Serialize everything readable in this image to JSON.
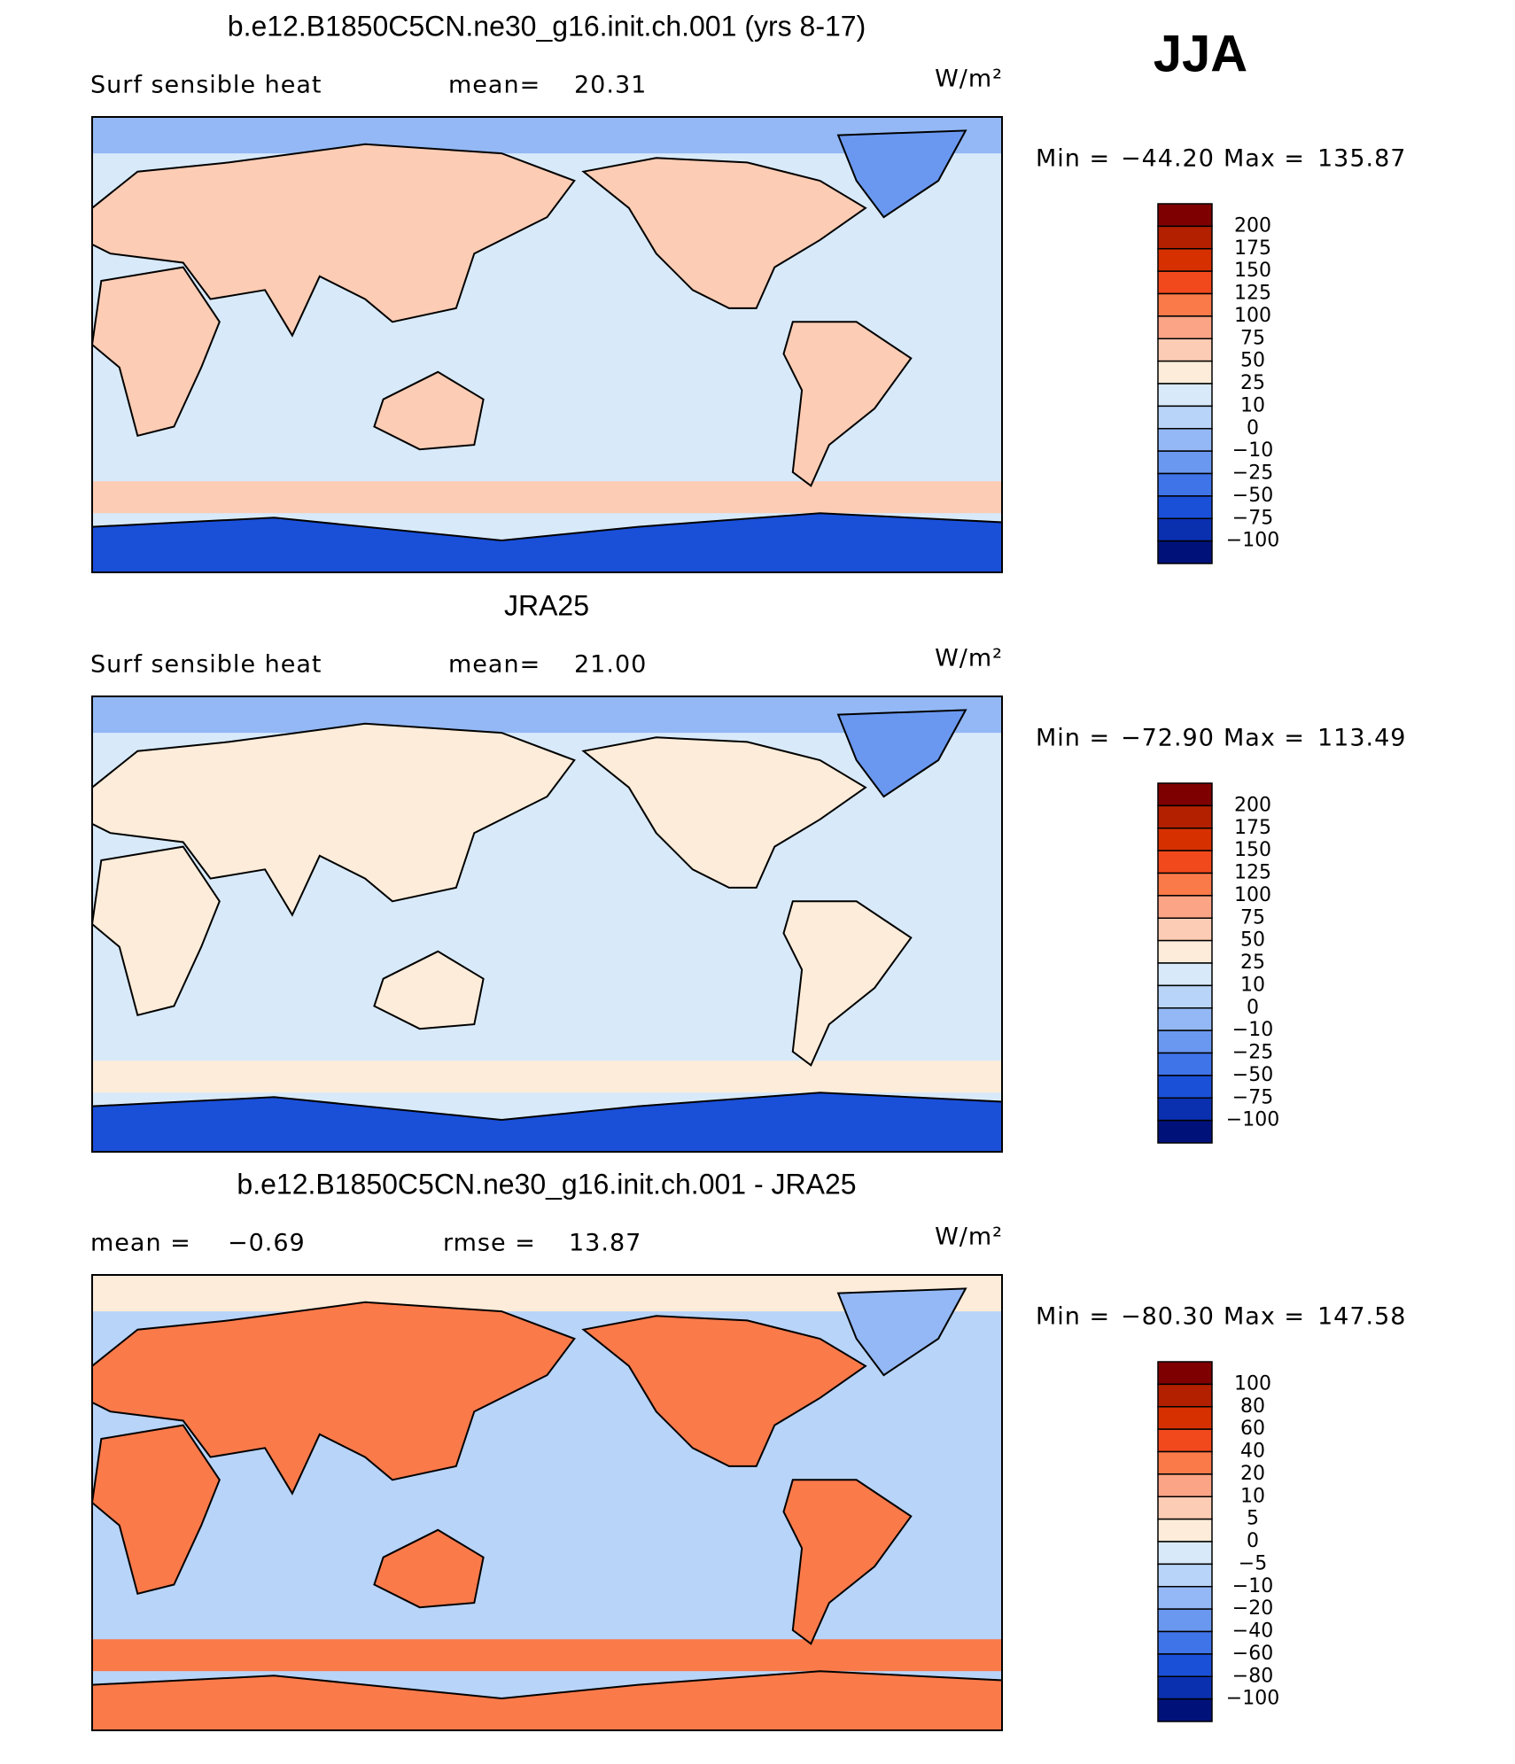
{
  "header": {
    "season": "JJA"
  },
  "panels": [
    {
      "title": "b.e12.B1850C5CN.ne30_g16.init.ch.001 (yrs 8-17)",
      "left_label": "Surf  sensible heat",
      "stats": [
        {
          "label": "mean=",
          "value": "20.31"
        }
      ],
      "units": "W/m²",
      "min_label": "Min  =",
      "min_value": "−44.20",
      "max_label": "Max  =",
      "max_value": "135.87",
      "colorbar": {
        "colors": [
          "#7f0000",
          "#b22000",
          "#d73000",
          "#f2491c",
          "#fa7a4a",
          "#fca486",
          "#fdccb4",
          "#fdecd9",
          "#d8eafa",
          "#b8d4f8",
          "#93b8f5",
          "#6a98f0",
          "#3f73e8",
          "#1a4fd8",
          "#0a30b0",
          "#00127a"
        ],
        "labels": [
          "200",
          "175",
          "150",
          "125",
          "100",
          "75",
          "50",
          "25",
          "10",
          "0",
          "−10",
          "−25",
          "−50",
          "−75",
          "−100"
        ]
      }
    },
    {
      "title": "JRA25",
      "left_label": "Surf  sensible heat",
      "stats": [
        {
          "label": "mean=",
          "value": "21.00"
        }
      ],
      "units": "W/m²",
      "min_label": "Min  =",
      "min_value": "−72.90",
      "max_label": "Max  =",
      "max_value": "113.49",
      "colorbar": {
        "colors": [
          "#7f0000",
          "#b22000",
          "#d73000",
          "#f2491c",
          "#fa7a4a",
          "#fca486",
          "#fdccb4",
          "#fdecd9",
          "#d8eafa",
          "#b8d4f8",
          "#93b8f5",
          "#6a98f0",
          "#3f73e8",
          "#1a4fd8",
          "#0a30b0",
          "#00127a"
        ],
        "labels": [
          "200",
          "175",
          "150",
          "125",
          "100",
          "75",
          "50",
          "25",
          "10",
          "0",
          "−10",
          "−25",
          "−50",
          "−75",
          "−100"
        ]
      }
    },
    {
      "title": "b.e12.B1850C5CN.ne30_g16.init.ch.001 - JRA25",
      "stats": [
        {
          "label": "mean =",
          "value": "−0.69"
        },
        {
          "label": "rmse =",
          "value": "13.87"
        }
      ],
      "units": "W/m²",
      "min_label": "Min  =",
      "min_value": "−80.30",
      "max_label": "Max  =",
      "max_value": "147.58",
      "colorbar": {
        "colors": [
          "#7f0000",
          "#b22000",
          "#d73000",
          "#f2491c",
          "#fa7a4a",
          "#fca486",
          "#fdccb4",
          "#fdecd9",
          "#d8eafa",
          "#b8d4f8",
          "#93b8f5",
          "#6a98f0",
          "#3f73e8",
          "#1a4fd8",
          "#0a30b0",
          "#00127a"
        ],
        "labels": [
          "100",
          "80",
          "60",
          "40",
          "20",
          "10",
          "5",
          "0",
          "−5",
          "−10",
          "−20",
          "−40",
          "−60",
          "−80",
          "−100"
        ]
      }
    }
  ]
}
